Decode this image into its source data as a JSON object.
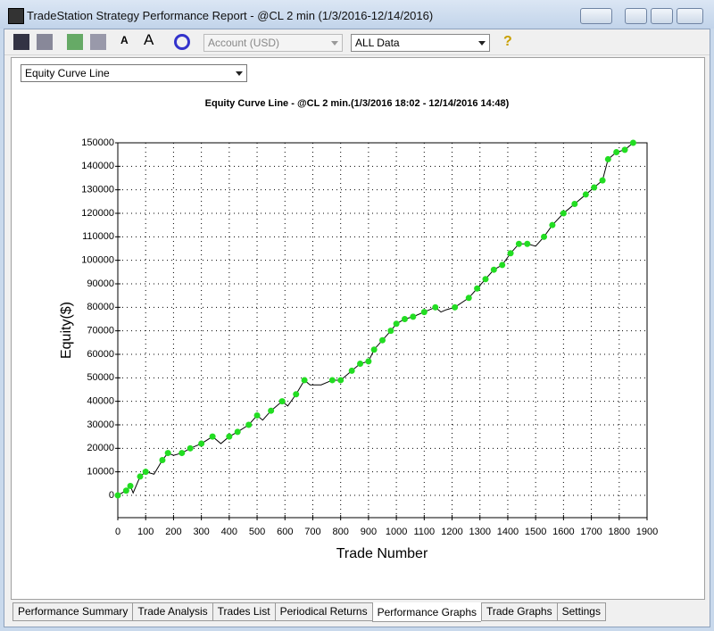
{
  "window": {
    "title": "TradeStation Strategy Performance Report - @CL 2 min (1/3/2016-12/14/2016)"
  },
  "toolbar": {
    "account": "Account (USD)",
    "range": "ALL Data",
    "help": "?"
  },
  "graph_selector": "Equity Curve Line",
  "chart_data": {
    "type": "line",
    "title": "Equity Curve Line - @CL 2 min.(1/3/2016 18:02 - 12/14/2016 14:48)",
    "x_label": "Trade Number",
    "y_label": "Equity($)",
    "x": [
      0,
      30,
      45,
      55,
      80,
      100,
      130,
      160,
      180,
      200,
      230,
      260,
      300,
      340,
      370,
      400,
      430,
      470,
      500,
      520,
      550,
      590,
      610,
      640,
      670,
      690,
      730,
      770,
      800,
      840,
      870,
      900,
      920,
      950,
      980,
      1000,
      1030,
      1060,
      1100,
      1140,
      1160,
      1180,
      1210,
      1260,
      1290,
      1320,
      1350,
      1380,
      1410,
      1440,
      1470,
      1500,
      1530,
      1560,
      1600,
      1640,
      1680,
      1710,
      1740,
      1760,
      1790,
      1820,
      1850
    ],
    "series": [
      {
        "name": "Equity",
        "color": "#000000",
        "highlight_color": "#22dd22",
        "values": [
          0,
          2000,
          4000,
          1000,
          8000,
          10000,
          9000,
          15000,
          18000,
          17000,
          18000,
          20000,
          22000,
          25000,
          22000,
          25000,
          27000,
          30000,
          34000,
          32000,
          36000,
          40000,
          38000,
          43000,
          49000,
          47000,
          47000,
          49000,
          49000,
          53000,
          56000,
          57000,
          62000,
          66000,
          70000,
          73000,
          75000,
          76000,
          78000,
          80000,
          78000,
          79000,
          80000,
          84000,
          88000,
          92000,
          96000,
          98000,
          103000,
          107000,
          107000,
          106000,
          110000,
          115000,
          120000,
          124000,
          128000,
          131000,
          134000,
          143000,
          146000,
          147000,
          150000
        ]
      }
    ],
    "xlim": [
      0,
      1900
    ],
    "xticks": [
      0,
      100,
      200,
      300,
      400,
      500,
      600,
      700,
      800,
      900,
      1000,
      1100,
      1200,
      1300,
      1400,
      1500,
      1600,
      1700,
      1800,
      1900
    ],
    "ylim": [
      -9500,
      150000
    ],
    "yticks": [
      0,
      10000,
      20000,
      30000,
      40000,
      50000,
      60000,
      70000,
      80000,
      90000,
      100000,
      110000,
      120000,
      130000,
      140000,
      150000
    ],
    "grid": true
  },
  "tabs": [
    "Performance Summary",
    "Trade Analysis",
    "Trades List",
    "Periodical Returns",
    "Performance Graphs",
    "Trade Graphs",
    "Settings"
  ],
  "active_tab": 4
}
